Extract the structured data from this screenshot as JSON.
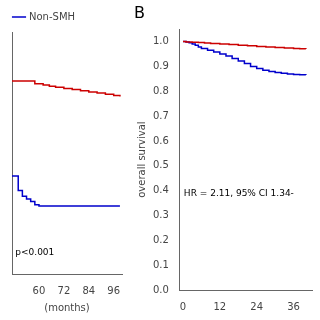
{
  "chart_data": [
    {
      "type": "line",
      "xlabel": "(months)",
      "annotation": "p<0.001",
      "xlim": [
        47,
        100
      ],
      "xticks": [
        60,
        72,
        84,
        96
      ],
      "ylim": [
        0.6,
        1.02
      ],
      "yticks": [],
      "tick_labels": "x",
      "grid": false,
      "legend": "top left",
      "series": [
        {
          "color": "#cc0000",
          "line_style": "steps",
          "x": [
            47,
            50,
            58,
            62,
            65,
            68,
            72,
            76,
            80,
            84,
            88,
            92,
            96,
            99
          ],
          "values": [
            0.935,
            0.935,
            0.93,
            0.928,
            0.926,
            0.924,
            0.922,
            0.92,
            0.918,
            0.916,
            0.914,
            0.912,
            0.91,
            0.908
          ]
        },
        {
          "name": "Non-SMH",
          "color": "#0000cc",
          "line_style": "steps",
          "x": [
            47,
            49,
            50,
            52,
            54,
            56,
            58,
            60,
            99
          ],
          "values": [
            0.77,
            0.77,
            0.745,
            0.735,
            0.73,
            0.726,
            0.72,
            0.718,
            0.718
          ]
        }
      ]
    },
    {
      "type": "line",
      "title": "B",
      "ylabel": "overall survival",
      "annotation": "HR = 2.11, 95% CI 1.34-",
      "xlim": [
        -1,
        42
      ],
      "xticks": [
        0,
        12,
        24,
        36
      ],
      "ylim": [
        0.0,
        1.05
      ],
      "yticks": [
        {
          "value": 0.0,
          "label": "0.0"
        },
        0.1,
        0.2,
        0.3,
        0.4,
        0.5,
        0.6,
        0.7,
        0.8,
        0.9,
        {
          "value": 1.0,
          "label": "1.0"
        }
      ],
      "grid": false,
      "series": [
        {
          "color": "#cc0000",
          "line_style": "steps",
          "x": [
            0,
            1,
            3,
            5,
            7,
            9,
            12,
            15,
            18,
            21,
            24,
            27,
            30,
            33,
            36,
            38,
            40
          ],
          "values": [
            1.0,
            0.998,
            0.997,
            0.996,
            0.994,
            0.992,
            0.99,
            0.988,
            0.985,
            0.983,
            0.98,
            0.978,
            0.976,
            0.974,
            0.972,
            0.971,
            0.97
          ]
        },
        {
          "color": "#0000cc",
          "line_style": "steps",
          "x": [
            0,
            1,
            2,
            3,
            4,
            5,
            6,
            8,
            10,
            12,
            14,
            16,
            18,
            20,
            22,
            24,
            26,
            28,
            30,
            32,
            34,
            36,
            38,
            40
          ],
          "values": [
            1.0,
            0.998,
            0.995,
            0.99,
            0.985,
            0.978,
            0.972,
            0.965,
            0.958,
            0.95,
            0.942,
            0.932,
            0.922,
            0.912,
            0.9,
            0.892,
            0.885,
            0.88,
            0.876,
            0.873,
            0.87,
            0.868,
            0.867,
            0.866
          ]
        }
      ]
    }
  ]
}
